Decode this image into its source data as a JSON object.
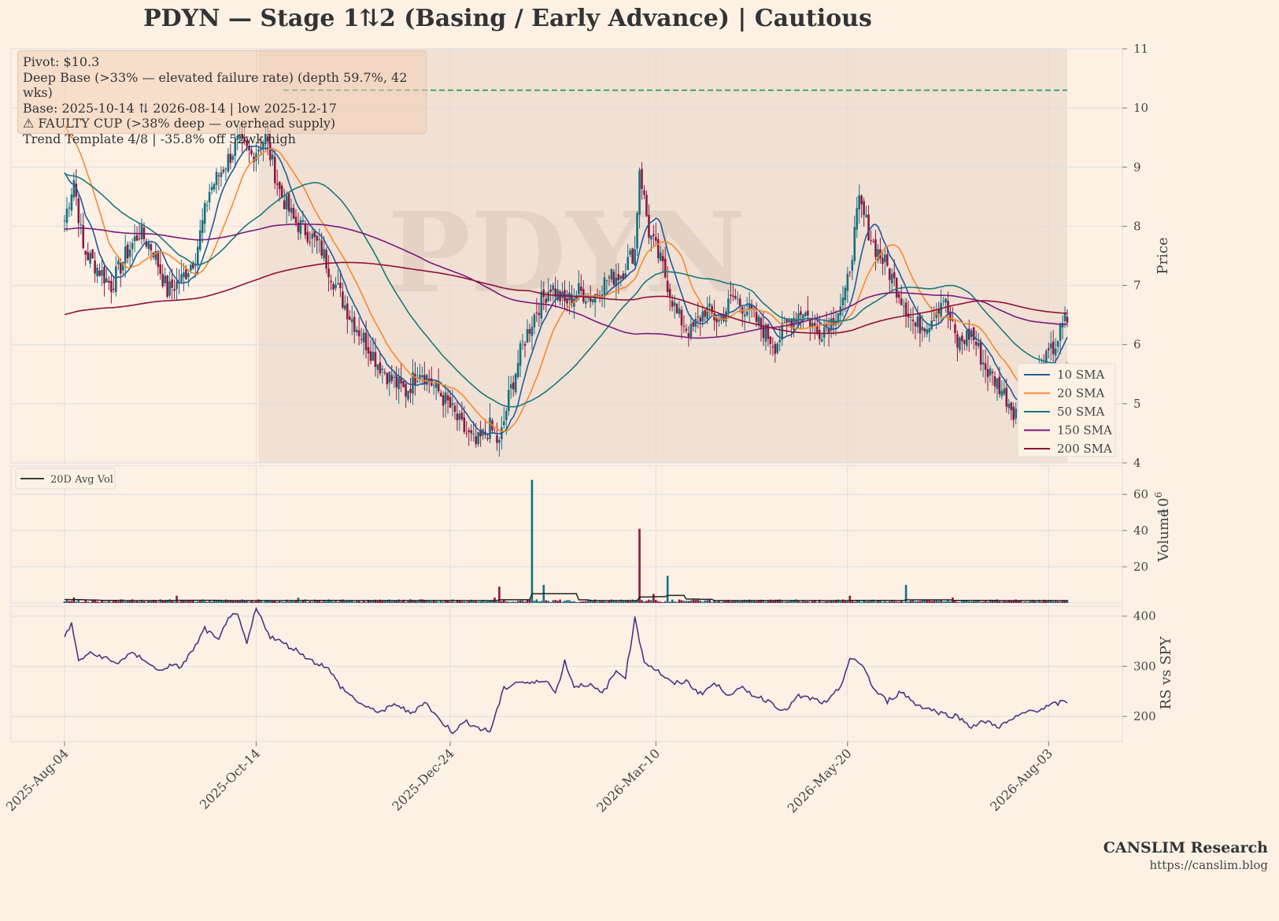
{
  "header": {
    "title": "PDYN  —  Stage 1⇅2 (Basing / Early Advance)  |  Cautious"
  },
  "annotations": {
    "lines": [
      "Pivot: $10.3",
      "Deep Base (>33% — elevated failure rate)  (depth 59.7%, 42 wks)",
      "Base: 2025-10-14 ⇅ 2026-08-14  |  low 2025-12-17",
      "⚠ FAULTY CUP (>38% deep — overhead supply)",
      "Trend Template 4/8  |  -35.8% off 52wk high"
    ]
  },
  "watermark": "PDYN",
  "branding": {
    "name": "CANSLIM Research",
    "url": "https://canslim.blog"
  },
  "colors": {
    "up": "#16707f",
    "down": "#8b1a42",
    "sma10": "#1f5b9c",
    "sma20": "#f5892e",
    "sma50": "#1a7a7a",
    "sma150": "#7a1a7a",
    "sma200": "#8f1238",
    "pivot": "#1a9a4a",
    "rs": "#4a3580",
    "avgvol": "#222222",
    "base_shade": "#e8d2c4"
  },
  "chart_data": [
    {
      "type": "candlestick",
      "panel": "price",
      "ylabel": "Price",
      "ylim": [
        4,
        11
      ],
      "yticks": [
        "4",
        "5",
        "6",
        "7",
        "8",
        "9",
        "10",
        "11"
      ],
      "x_tick_labels": [
        "2025-Aug-04",
        "2025-Oct-14",
        "2025-Dec-24",
        "2026-Mar-10",
        "2026-May-20",
        "2026-Aug-03"
      ],
      "pivot": 10.3,
      "base_start": "2025-10-14",
      "base_end": "2026-08-14",
      "legend": [
        "10 SMA",
        "20 SMA",
        "50 SMA",
        "150 SMA",
        "200 SMA"
      ],
      "close_path": [
        [
          0,
          8.1
        ],
        [
          4,
          8.8
        ],
        [
          8,
          7.6
        ],
        [
          14,
          7.3
        ],
        [
          20,
          7.0
        ],
        [
          26,
          7.5
        ],
        [
          32,
          7.9
        ],
        [
          38,
          7.6
        ],
        [
          44,
          6.9
        ],
        [
          50,
          7.1
        ],
        [
          56,
          7.5
        ],
        [
          62,
          8.6
        ],
        [
          68,
          9.0
        ],
        [
          74,
          9.4
        ],
        [
          80,
          9.2
        ],
        [
          86,
          9.5
        ],
        [
          92,
          8.6
        ],
        [
          98,
          8.1
        ],
        [
          104,
          7.9
        ],
        [
          110,
          7.6
        ],
        [
          116,
          7.0
        ],
        [
          122,
          6.5
        ],
        [
          128,
          6.1
        ],
        [
          134,
          5.7
        ],
        [
          140,
          5.4
        ],
        [
          146,
          5.2
        ],
        [
          152,
          5.6
        ],
        [
          158,
          5.3
        ],
        [
          164,
          5.0
        ],
        [
          170,
          4.6
        ],
        [
          176,
          4.3
        ],
        [
          182,
          4.6
        ],
        [
          186,
          4.3
        ],
        [
          190,
          5.1
        ],
        [
          196,
          6.0
        ],
        [
          202,
          6.6
        ],
        [
          208,
          7.0
        ],
        [
          214,
          6.7
        ],
        [
          220,
          6.9
        ],
        [
          226,
          6.8
        ],
        [
          232,
          7.1
        ],
        [
          238,
          7.2
        ],
        [
          244,
          7.6
        ],
        [
          246,
          9.0
        ],
        [
          250,
          7.9
        ],
        [
          256,
          7.3
        ],
        [
          262,
          6.5
        ],
        [
          268,
          6.2
        ],
        [
          274,
          6.6
        ],
        [
          280,
          6.4
        ],
        [
          286,
          6.8
        ],
        [
          292,
          6.6
        ],
        [
          298,
          6.3
        ],
        [
          304,
          6.0
        ],
        [
          310,
          6.4
        ],
        [
          316,
          6.6
        ],
        [
          322,
          6.2
        ],
        [
          328,
          6.4
        ],
        [
          334,
          6.8
        ],
        [
          340,
          8.4
        ],
        [
          346,
          7.7
        ],
        [
          352,
          7.3
        ],
        [
          358,
          6.8
        ],
        [
          364,
          6.3
        ],
        [
          370,
          6.4
        ],
        [
          376,
          6.8
        ],
        [
          382,
          6.0
        ],
        [
          388,
          6.2
        ],
        [
          394,
          5.6
        ],
        [
          400,
          5.3
        ],
        [
          406,
          4.9
        ],
        [
          412,
          5.1
        ],
        [
          418,
          5.6
        ],
        [
          424,
          6.0
        ],
        [
          428,
          6.4
        ]
      ],
      "price_ticks_days": [
        0,
        71,
        142,
        218,
        289,
        363
      ],
      "days_total": 370
    },
    {
      "type": "bar",
      "panel": "volume",
      "ylabel": "Volume",
      "y_scale_label": "10^6",
      "ylim": [
        0,
        70
      ],
      "yticks": [
        "20",
        "40",
        "60"
      ],
      "legend": [
        "20D Avg Vol"
      ],
      "spikes": [
        [
          4,
          3
        ],
        [
          45,
          2
        ],
        [
          48,
          4
        ],
        [
          100,
          3
        ],
        [
          152,
          2
        ],
        [
          184,
          3
        ],
        [
          186,
          9
        ],
        [
          200,
          68
        ],
        [
          205,
          10
        ],
        [
          246,
          41
        ],
        [
          252,
          5
        ],
        [
          258,
          15
        ],
        [
          336,
          4
        ],
        [
          360,
          10
        ],
        [
          380,
          3
        ]
      ]
    },
    {
      "type": "line",
      "panel": "rs",
      "ylabel": "RS vs SPY",
      "ylim": [
        150,
        420
      ],
      "yticks": [
        "200",
        "300",
        "400"
      ],
      "points": [
        [
          0,
          360
        ],
        [
          3,
          385
        ],
        [
          6,
          310
        ],
        [
          10,
          325
        ],
        [
          16,
          320
        ],
        [
          22,
          305
        ],
        [
          28,
          325
        ],
        [
          34,
          315
        ],
        [
          40,
          290
        ],
        [
          44,
          300
        ],
        [
          50,
          300
        ],
        [
          56,
          340
        ],
        [
          60,
          375
        ],
        [
          66,
          350
        ],
        [
          70,
          400
        ],
        [
          74,
          400
        ],
        [
          78,
          345
        ],
        [
          82,
          415
        ],
        [
          88,
          360
        ],
        [
          94,
          345
        ],
        [
          100,
          330
        ],
        [
          106,
          310
        ],
        [
          112,
          300
        ],
        [
          118,
          260
        ],
        [
          124,
          235
        ],
        [
          130,
          215
        ],
        [
          136,
          210
        ],
        [
          142,
          225
        ],
        [
          148,
          205
        ],
        [
          154,
          230
        ],
        [
          160,
          195
        ],
        [
          166,
          170
        ],
        [
          172,
          190
        ],
        [
          178,
          175
        ],
        [
          182,
          170
        ],
        [
          188,
          255
        ],
        [
          194,
          270
        ],
        [
          200,
          265
        ],
        [
          206,
          275
        ],
        [
          210,
          245
        ],
        [
          214,
          310
        ],
        [
          218,
          260
        ],
        [
          224,
          265
        ],
        [
          230,
          245
        ],
        [
          236,
          290
        ],
        [
          240,
          280
        ],
        [
          244,
          395
        ],
        [
          248,
          310
        ],
        [
          254,
          290
        ],
        [
          260,
          265
        ],
        [
          266,
          270
        ],
        [
          272,
          245
        ],
        [
          278,
          265
        ],
        [
          284,
          245
        ],
        [
          290,
          255
        ],
        [
          296,
          240
        ],
        [
          302,
          230
        ],
        [
          308,
          210
        ],
        [
          314,
          240
        ],
        [
          320,
          235
        ],
        [
          326,
          225
        ],
        [
          332,
          260
        ],
        [
          336,
          315
        ],
        [
          342,
          300
        ],
        [
          346,
          255
        ],
        [
          352,
          230
        ],
        [
          358,
          250
        ],
        [
          364,
          225
        ],
        [
          370,
          215
        ],
        [
          376,
          205
        ],
        [
          382,
          200
        ],
        [
          388,
          180
        ],
        [
          394,
          190
        ],
        [
          400,
          180
        ],
        [
          406,
          195
        ],
        [
          412,
          210
        ],
        [
          418,
          215
        ],
        [
          424,
          225
        ],
        [
          428,
          230
        ]
      ]
    }
  ]
}
